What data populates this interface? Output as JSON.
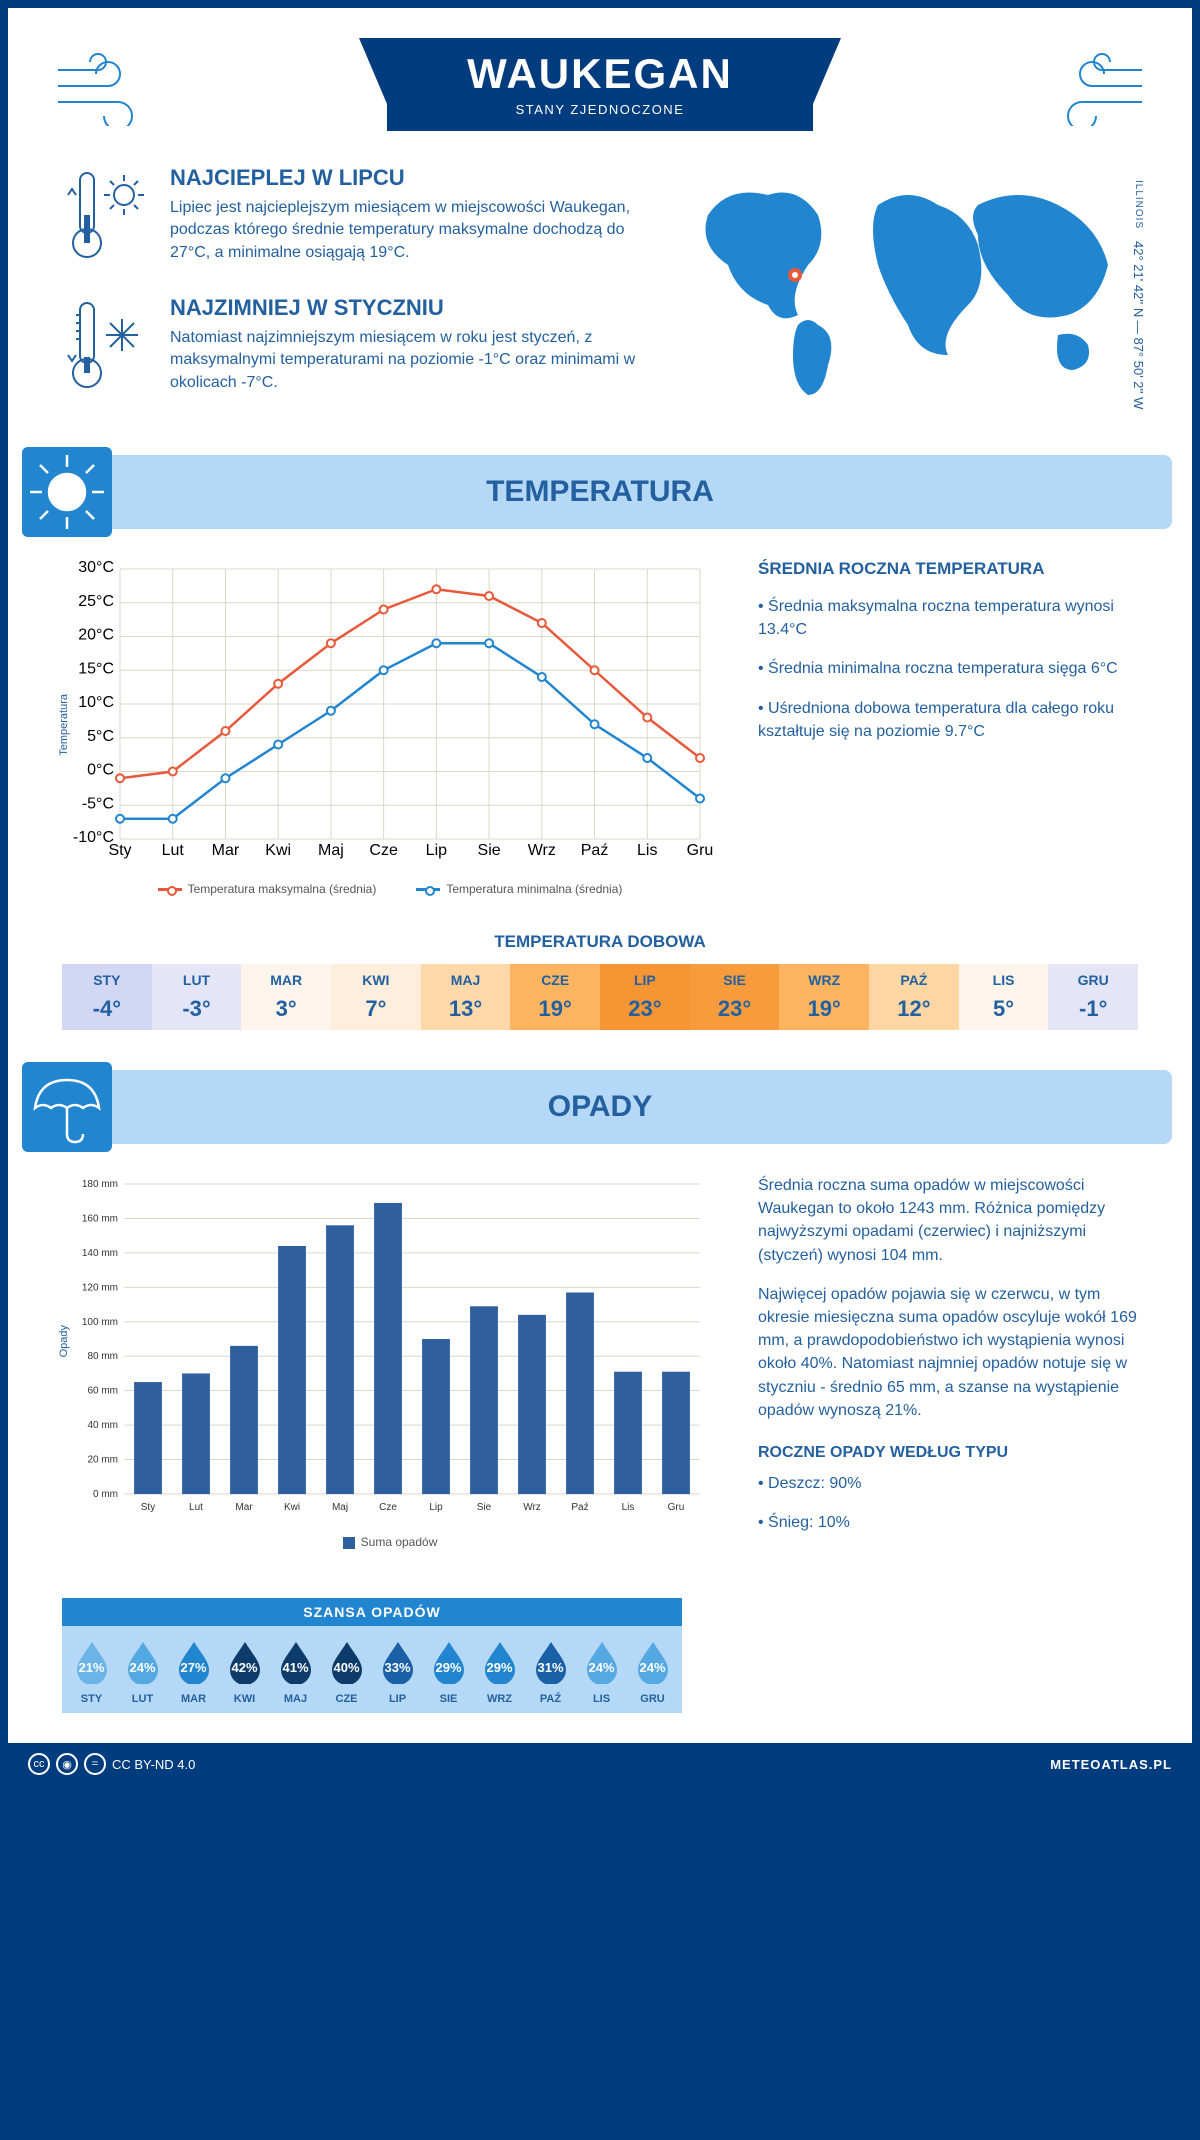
{
  "header": {
    "city": "WAUKEGAN",
    "country": "STANY ZJEDNOCZONE"
  },
  "location": {
    "state": "ILLINOIS",
    "coords": "42° 21' 42'' N — 87° 50' 2'' W",
    "pin": {
      "left_pct": 24,
      "top_pct": 43
    }
  },
  "intro": {
    "hot": {
      "title": "NAJCIEPLEJ W LIPCU",
      "body": "Lipiec jest najcieplejszym miesiącem w miejscowości Waukegan, podczas którego średnie temperatury maksymalne dochodzą do 27°C, a minimalne osiągają 19°C."
    },
    "cold": {
      "title": "NAJZIMNIEJ W STYCZNIU",
      "body": "Natomiast najzimniejszym miesiącem w roku jest styczeń, z maksymalnymi temperaturami na poziomie -1°C oraz minimami w okolicach -7°C."
    }
  },
  "months": [
    "Sty",
    "Lut",
    "Mar",
    "Kwi",
    "Maj",
    "Cze",
    "Lip",
    "Sie",
    "Wrz",
    "Paź",
    "Lis",
    "Gru"
  ],
  "months_uc": [
    "STY",
    "LUT",
    "MAR",
    "KWI",
    "MAJ",
    "CZE",
    "LIP",
    "SIE",
    "WRZ",
    "PAŹ",
    "LIS",
    "GRU"
  ],
  "temperature": {
    "section_title": "TEMPERATURA",
    "y_label": "Temperatura",
    "ylim": [
      -10,
      30
    ],
    "ytick_step": 5,
    "ytick_labels": [
      "-10°C",
      "-5°C",
      "0°C",
      "5°C",
      "10°C",
      "15°C",
      "20°C",
      "25°C",
      "30°C"
    ],
    "series_max": {
      "name": "Temperatura maksymalna (średnia)",
      "color": "#e8593b",
      "values": [
        -1,
        0,
        6,
        13,
        19,
        24,
        27,
        26,
        22,
        15,
        8,
        2
      ]
    },
    "series_min": {
      "name": "Temperatura minimalna (średnia)",
      "color": "#2185d0",
      "values": [
        -7,
        -7,
        -1,
        4,
        9,
        15,
        19,
        19,
        14,
        7,
        2,
        -4
      ]
    },
    "side": {
      "title": "ŚREDNIA ROCZNA TEMPERATURA",
      "items": [
        "• Średnia maksymalna roczna temperatura wynosi 13.4°C",
        "• Średnia minimalna roczna temperatura sięga 6°C",
        "• Uśredniona dobowa temperatura dla całego roku kształtuje się na poziomie 9.7°C"
      ]
    },
    "daily": {
      "title": "TEMPERATURA DOBOWA",
      "values": [
        "-4°",
        "-3°",
        "3°",
        "7°",
        "13°",
        "19°",
        "23°",
        "23°",
        "19°",
        "12°",
        "5°",
        "-1°"
      ],
      "colors": [
        "#d2d7f4",
        "#e4e6f8",
        "#fdf4ec",
        "#feeedb",
        "#fed8a8",
        "#fcb461",
        "#f79433",
        "#f89b3c",
        "#fcb461",
        "#fed6a4",
        "#fdf4ec",
        "#e4e6f8"
      ]
    }
  },
  "precipitation": {
    "section_title": "OPADY",
    "y_label": "Opady",
    "ylim": [
      0,
      180
    ],
    "ytick_step": 20,
    "ytick_labels": [
      "0 mm",
      "20 mm",
      "40 mm",
      "60 mm",
      "80 mm",
      "100 mm",
      "120 mm",
      "140 mm",
      "160 mm",
      "180 mm"
    ],
    "values": [
      65,
      70,
      86,
      144,
      156,
      169,
      90,
      109,
      104,
      117,
      71,
      71
    ],
    "bar_color": "#2f5f9e",
    "legend": "Suma opadów",
    "side": {
      "p1": "Średnia roczna suma opadów w miejscowości Waukegan to około 1243 mm. Różnica pomiędzy najwyższymi opadami (czerwiec) i najniższymi (styczeń) wynosi 104 mm.",
      "p2": "Najwięcej opadów pojawia się w czerwcu, w tym okresie miesięczna suma opadów oscyluje wokół 169 mm, a prawdopodobieństwo ich wystąpienia wynosi około 40%. Natomiast najmniej opadów notuje się w styczniu - średnio 65 mm, a szanse na wystąpienie opadów wynoszą 21%."
    },
    "chance": {
      "title": "SZANSA OPADÓW",
      "values": [
        "21%",
        "24%",
        "27%",
        "42%",
        "41%",
        "40%",
        "33%",
        "29%",
        "29%",
        "31%",
        "24%",
        "24%"
      ],
      "colors": [
        "#6ab4e8",
        "#55a9e3",
        "#2185d0",
        "#0d3c6b",
        "#0d3c6b",
        "#0d3c6b",
        "#1a60a6",
        "#2185d0",
        "#2185d0",
        "#1a60a6",
        "#55a9e3",
        "#55a9e3"
      ]
    },
    "types": {
      "title": "ROCZNE OPADY WEDŁUG TYPU",
      "rain": "• Deszcz: 90%",
      "snow": "• Śnieg: 10%"
    }
  },
  "footer": {
    "license": "CC BY-ND 4.0",
    "site": "METEOATLAS.PL"
  }
}
